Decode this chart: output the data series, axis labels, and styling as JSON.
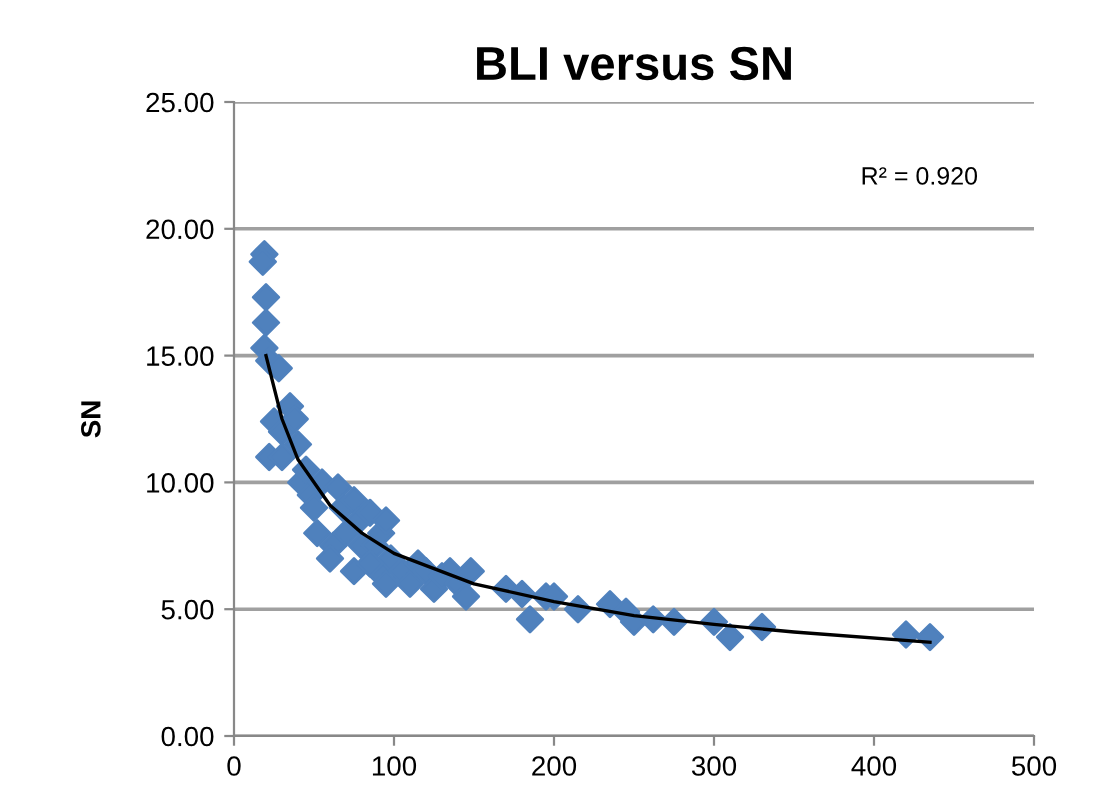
{
  "chart_data": {
    "type": "scatter",
    "title": "BLI versus SN",
    "ylabel": "SN",
    "annotations": [
      "R² = 0.920"
    ],
    "xlim": [
      0,
      500
    ],
    "xticks": [
      0,
      100,
      200,
      300,
      400,
      500
    ],
    "ylim": [
      0,
      25
    ],
    "yticks": [
      {
        "value": 0,
        "label": "0.00"
      },
      {
        "value": 5,
        "label": "5.00"
      },
      {
        "value": 10,
        "label": "10.00"
      },
      {
        "value": 15,
        "label": "15.00"
      },
      {
        "value": 20,
        "label": "20.00"
      },
      {
        "value": 25,
        "label": "25.00"
      }
    ],
    "grid": "y",
    "legend": false,
    "marker": "diamond",
    "series": [
      {
        "color": "#4f81bd",
        "x": [
          19,
          18,
          20,
          20,
          19,
          22,
          28,
          25,
          22,
          30,
          35,
          38,
          30,
          40,
          42,
          45,
          48,
          50,
          52,
          55,
          62,
          65,
          68,
          70,
          75,
          78,
          80,
          85,
          88,
          90,
          92,
          95,
          98,
          105,
          110,
          115,
          120,
          125,
          130,
          135,
          140,
          145,
          148,
          170,
          180,
          185,
          195,
          200,
          215,
          235,
          245,
          250,
          262,
          275,
          300,
          310,
          330,
          420,
          435,
          60,
          75,
          85,
          95
        ],
        "values": [
          19.0,
          18.7,
          17.3,
          16.3,
          15.3,
          14.8,
          14.5,
          12.4,
          11.0,
          12.0,
          13.0,
          12.5,
          11.0,
          11.5,
          10.0,
          10.5,
          9.5,
          9.0,
          8.0,
          10.0,
          7.5,
          9.8,
          9.0,
          8.0,
          9.3,
          8.5,
          7.5,
          8.8,
          7.5,
          6.5,
          8.0,
          8.5,
          7.0,
          6.5,
          6.0,
          6.8,
          6.5,
          5.8,
          6.3,
          6.5,
          6.0,
          5.5,
          6.5,
          5.8,
          5.6,
          4.6,
          5.5,
          5.5,
          5.0,
          5.2,
          4.9,
          4.5,
          4.6,
          4.5,
          4.5,
          3.9,
          4.3,
          4.0,
          3.9,
          7.0,
          6.5,
          6.8,
          6.0
        ]
      },
      {
        "type": "line",
        "color": "#000000",
        "marker": "none",
        "line_style": "solid",
        "x": [
          20,
          30,
          40,
          60,
          80,
          100,
          150,
          200,
          250,
          300,
          350,
          435
        ],
        "values": [
          15.0,
          12.5,
          10.9,
          9.1,
          8.0,
          7.2,
          6.0,
          5.3,
          4.75,
          4.4,
          4.1,
          3.7
        ]
      }
    ]
  }
}
